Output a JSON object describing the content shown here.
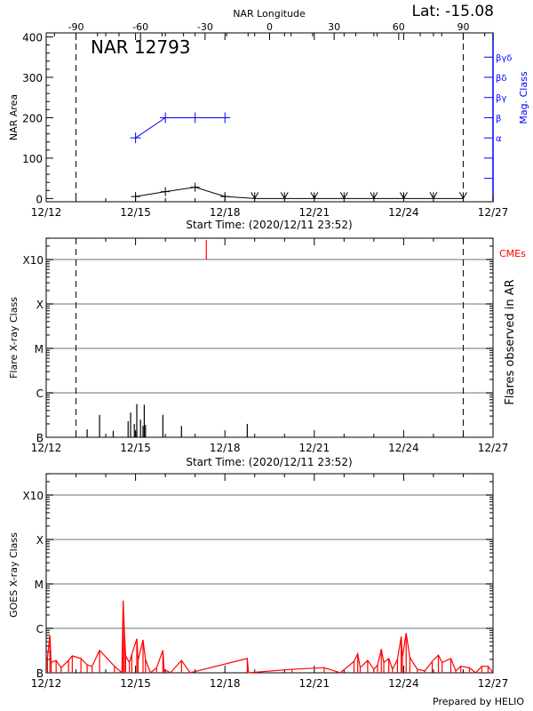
{
  "header": {
    "lat_label": "Lat: -15.08",
    "top_axis_title": "NAR Longitude",
    "footer": "Prepared by HELIO"
  },
  "colors": {
    "axis": "#000000",
    "mag_class": "#0000ff",
    "cme": "#ff0000",
    "goes": "#ff0000",
    "grid": "#a0a0a0"
  },
  "chart_data": [
    {
      "type": "line",
      "title": "NAR 12793",
      "xlabel": "Start Time: (2020/12/11 23:52)",
      "ylabel": "NAR Area",
      "y2label": "Mag. Class",
      "ylim": [
        -8,
        410
      ],
      "yticks": [
        "0",
        "100",
        "200",
        "300",
        "400"
      ],
      "xrange": [
        "2020-12-12 00:00",
        "2020-12-27 00:00"
      ],
      "xticks": [
        "12/12",
        "12/15",
        "12/18",
        "12/21",
        "12/24",
        "12/27"
      ],
      "top_axis": {
        "label": "NAR Longitude",
        "range": [
          -90,
          90
        ],
        "ticks": [
          "-90",
          "-60",
          "-30",
          "0",
          "30",
          "60",
          "90"
        ]
      },
      "limb_lines": [
        "2020-12-13 00:00",
        "2020-12-26 00:00"
      ],
      "mag_class_ticks": [
        {
          "value": 50,
          "label": ""
        },
        {
          "value": 100,
          "label": ""
        },
        {
          "value": 150,
          "label": "α"
        },
        {
          "value": 200,
          "label": "β"
        },
        {
          "value": 250,
          "label": "βγ"
        },
        {
          "value": 300,
          "label": "βδ"
        },
        {
          "value": 350,
          "label": "βγδ"
        }
      ],
      "series": [
        {
          "kind": "area",
          "x": [
            "2020-12-15 00:00",
            "2020-12-16 00:00",
            "2020-12-17 00:00",
            "2020-12-18 00:00",
            "2020-12-19 00:00",
            "2020-12-20 00:00",
            "2020-12-21 00:00",
            "2020-12-22 00:00",
            "2020-12-23 00:00",
            "2020-12-24 00:00",
            "2020-12-25 00:00",
            "2020-12-26 00:00"
          ],
          "values": [
            5,
            17,
            28,
            5,
            0,
            0,
            0,
            0,
            0,
            0,
            0,
            0
          ],
          "markers": [
            "plus",
            "plus",
            "plus",
            "plus",
            "arrow",
            "arrow",
            "arrow",
            "arrow",
            "arrow",
            "arrow",
            "arrow",
            "arrow"
          ]
        },
        {
          "kind": "mag_class",
          "x": [
            "2020-12-15 00:00",
            "2020-12-16 00:00",
            "2020-12-17 00:00",
            "2020-12-18 00:00"
          ],
          "values": [
            "α",
            "β",
            "β",
            "β"
          ]
        }
      ]
    },
    {
      "type": "bar",
      "xlabel": "Start Time: (2020/12/11 23:52)",
      "ylabel": "Flare X-ray Class",
      "y2label": "Flares observed in AR",
      "cme_label": "CMEs",
      "yscale": "log",
      "yticks": [
        "B",
        "C",
        "M",
        "X",
        "X10"
      ],
      "grid": true,
      "xticks": [
        "12/12",
        "12/15",
        "12/18",
        "12/21",
        "12/24",
        "12/27"
      ],
      "limb_lines": [
        "2020-12-13 00:00",
        "2020-12-26 00:00"
      ],
      "flares": [
        {
          "t": "2020-12-13 09:00",
          "class": "B1.5"
        },
        {
          "t": "2020-12-13 19:00",
          "class": "B3.2"
        },
        {
          "t": "2020-12-14 06:00",
          "class": "B1.4"
        },
        {
          "t": "2020-12-14 18:00",
          "class": "B2.3"
        },
        {
          "t": "2020-12-14 20:00",
          "class": "B3.6"
        },
        {
          "t": "2020-12-14 23:00",
          "class": "B2.0"
        },
        {
          "t": "2020-12-15 00:00",
          "class": "B1.3"
        },
        {
          "t": "2020-12-15 01:00",
          "class": "B5.6"
        },
        {
          "t": "2020-12-15 04:00",
          "class": "B2.5"
        },
        {
          "t": "2020-12-15 06:00",
          "class": "B1.8"
        },
        {
          "t": "2020-12-15 07:00",
          "class": "B5.4"
        },
        {
          "t": "2020-12-15 08:00",
          "class": "B1.9"
        },
        {
          "t": "2020-12-15 22:00",
          "class": "B3.2"
        },
        {
          "t": "2020-12-16 13:00",
          "class": "B1.8"
        },
        {
          "t": "2020-12-18 18:00",
          "class": "B2.0"
        }
      ],
      "cmes": [
        "2020-12-17 09:00"
      ]
    },
    {
      "type": "line",
      "ylabel": "GOES X-ray Class",
      "yscale": "log",
      "yticks": [
        "B",
        "C",
        "M",
        "X",
        "X10"
      ],
      "grid": true,
      "xticks": [
        "12/12",
        "12/15",
        "12/18",
        "12/21",
        "12/24",
        "12/27"
      ],
      "goes": [
        [
          "2020-12-12 01:00",
          "B2.2"
        ],
        [
          "2020-12-12 03:00",
          "B6.9"
        ],
        [
          "2020-12-12 04:00",
          "B1.7"
        ],
        [
          "2020-12-12 08:00",
          "B1.9"
        ],
        [
          "2020-12-12 12:00",
          "B1.3"
        ],
        [
          "2020-12-12 18:00",
          "B1.9"
        ],
        [
          "2020-12-12 21:00",
          "B2.4"
        ],
        [
          "2020-12-13 04:00",
          "B2.1"
        ],
        [
          "2020-12-13 09:00",
          "B1.5"
        ],
        [
          "2020-12-13 13:00",
          "B1.4"
        ],
        [
          "2020-12-13 19:00",
          "B3.2"
        ],
        [
          "2020-12-14 07:00",
          "B1.4"
        ],
        [
          "2020-12-14 13:00",
          "B1.0"
        ],
        [
          "2020-12-14 14:00",
          "C4.2"
        ],
        [
          "2020-12-14 15:00",
          "B8.9"
        ],
        [
          "2020-12-14 16:00",
          "B2.4"
        ],
        [
          "2020-12-14 19:00",
          "B1.7"
        ],
        [
          "2020-12-14 21:00",
          "B2.6"
        ],
        [
          "2020-12-15 01:00",
          "B5.8"
        ],
        [
          "2020-12-15 02:00",
          "B1.9"
        ],
        [
          "2020-12-15 06:00",
          "B5.5"
        ],
        [
          "2020-12-15 08:00",
          "B2.0"
        ],
        [
          "2020-12-15 12:00",
          "B1.0"
        ],
        [
          "2020-12-15 17:00",
          "B1.3"
        ],
        [
          "2020-12-15 22:00",
          "B3.2"
        ],
        [
          "2020-12-15 23:00",
          "B1.2"
        ],
        [
          "2020-12-16 04:00",
          "B1.0"
        ],
        [
          "2020-12-16 13:00",
          "B1.9"
        ],
        [
          "2020-12-16 20:00",
          "B1.0"
        ],
        [
          "2020-12-18 18:00",
          "B2.1"
        ],
        [
          "2020-12-18 19:00",
          "B1.0"
        ],
        [
          "2020-12-20 06:00",
          "B1.2"
        ],
        [
          "2020-12-21 08:00",
          "B1.3"
        ],
        [
          "2020-12-21 21:00",
          "B1.0"
        ],
        [
          "2020-12-22 08:00",
          "B1.8"
        ],
        [
          "2020-12-22 11:00",
          "B2.7"
        ],
        [
          "2020-12-22 13:00",
          "B1.3"
        ],
        [
          "2020-12-22 19:00",
          "B1.9"
        ],
        [
          "2020-12-23 00:00",
          "B1.2"
        ],
        [
          "2020-12-23 03:00",
          "B1.5"
        ],
        [
          "2020-12-23 06:00",
          "B3.4"
        ],
        [
          "2020-12-23 08:00",
          "B1.7"
        ],
        [
          "2020-12-23 12:00",
          "B2.1"
        ],
        [
          "2020-12-23 15:00",
          "B1.2"
        ],
        [
          "2020-12-23 19:00",
          "B2.0"
        ],
        [
          "2020-12-23 22:00",
          "B6.5"
        ],
        [
          "2020-12-23 23:00",
          "B2.2"
        ],
        [
          "2020-12-24 02:00",
          "B7.8"
        ],
        [
          "2020-12-24 05:00",
          "B2.2"
        ],
        [
          "2020-12-24 11:00",
          "B1.2"
        ],
        [
          "2020-12-24 17:00",
          "B1.1"
        ],
        [
          "2020-12-24 23:00",
          "B1.8"
        ],
        [
          "2020-12-25 04:00",
          "B2.5"
        ],
        [
          "2020-12-25 07:00",
          "B1.7"
        ],
        [
          "2020-12-25 14:00",
          "B2.1"
        ],
        [
          "2020-12-25 18:00",
          "B1.1"
        ],
        [
          "2020-12-25 22:00",
          "B1.4"
        ],
        [
          "2020-12-26 05:00",
          "B1.3"
        ],
        [
          "2020-12-26 10:00",
          "B1.0"
        ],
        [
          "2020-12-26 15:00",
          "B1.4"
        ],
        [
          "2020-12-26 20:00",
          "B1.4"
        ],
        [
          "2020-12-26 23:00",
          "B1.1"
        ]
      ]
    }
  ]
}
